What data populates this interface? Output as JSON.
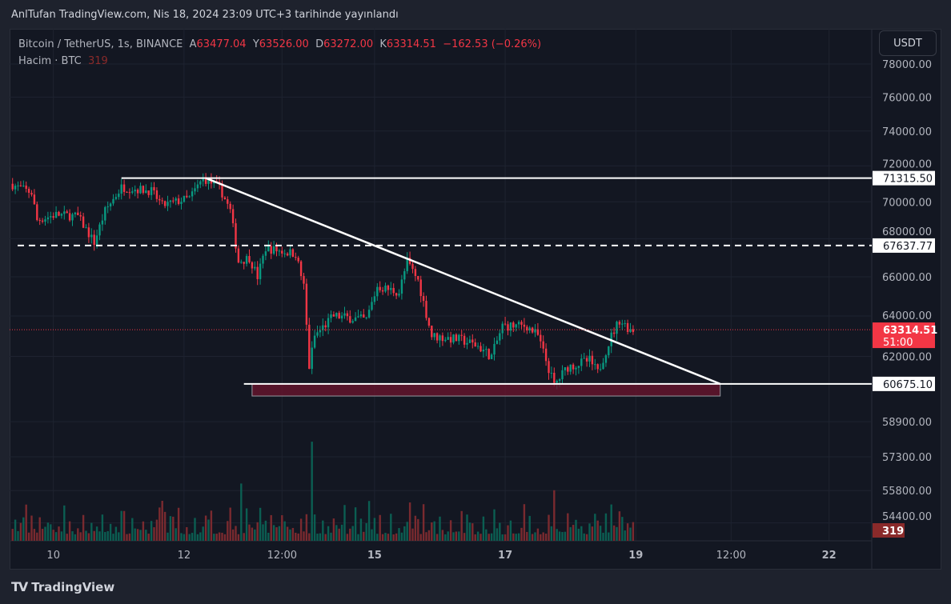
{
  "header": {
    "published": "AnlTufan TradingView.com, Nis 18, 2024 23:09 UTC+3 tarihinde yayınlandı"
  },
  "legend": {
    "symbol": "Bitcoin / TetherUS, 1s, BINANCE",
    "o_label": "A",
    "o": "63477.04",
    "h_label": "Y",
    "h": "63526.00",
    "l_label": "D",
    "l": "63272.00",
    "c_label": "K",
    "c": "63314.51",
    "change": "−162.53 (−0.26%)",
    "volume_label": "Hacim · BTC",
    "volume": "319"
  },
  "currency_button": "USDT",
  "footer": {
    "brand": "TradingView"
  },
  "colors": {
    "up": "#089981",
    "down": "#f23645",
    "bg": "#131722"
  },
  "chart_data": {
    "type": "candlestick",
    "scale": "log",
    "ylim": [
      53800,
      79500
    ],
    "y_ticks": [
      78000,
      76000,
      74000,
      72000,
      70000,
      68000,
      66000,
      64000,
      62000,
      58900,
      57300,
      55800,
      54400
    ],
    "x_ticks": [
      {
        "label": "10",
        "i": 15
      },
      {
        "label": "12",
        "i": 63
      },
      {
        "label": "12:00",
        "i": 99
      },
      {
        "label": "15",
        "i": 133
      },
      {
        "label": "17",
        "i": 181
      },
      {
        "label": "19",
        "i": 229
      },
      {
        "label": "12:00",
        "i": 264
      },
      {
        "label": "22",
        "i": 300
      }
    ],
    "n_candles": 229,
    "price_path": [
      [
        0,
        71000
      ],
      [
        8,
        70500
      ],
      [
        10,
        69000
      ],
      [
        17,
        69300
      ],
      [
        25,
        69200
      ],
      [
        31,
        67800
      ],
      [
        35,
        69500
      ],
      [
        41,
        70800
      ],
      [
        52,
        70600
      ],
      [
        56,
        69800
      ],
      [
        66,
        70200
      ],
      [
        71,
        71300
      ],
      [
        77,
        70800
      ],
      [
        81,
        69500
      ],
      [
        84,
        66800
      ],
      [
        88,
        67000
      ],
      [
        91,
        66000
      ],
      [
        94,
        67500
      ],
      [
        105,
        67200
      ],
      [
        108,
        65500
      ],
      [
        110,
        61500
      ],
      [
        112,
        63000
      ],
      [
        119,
        64000
      ],
      [
        131,
        63800
      ],
      [
        135,
        65500
      ],
      [
        143,
        65200
      ],
      [
        146,
        66800
      ],
      [
        150,
        65800
      ],
      [
        155,
        63000
      ],
      [
        166,
        62800
      ],
      [
        172,
        62500
      ],
      [
        177,
        62000
      ],
      [
        181,
        63500
      ],
      [
        190,
        63500
      ],
      [
        194,
        63000
      ],
      [
        199,
        61000
      ],
      [
        200,
        60600
      ],
      [
        205,
        61500
      ],
      [
        213,
        61800
      ],
      [
        216,
        61200
      ],
      [
        221,
        63000
      ],
      [
        224,
        63800
      ],
      [
        228,
        63314.51
      ]
    ],
    "annotations": {
      "resistance": {
        "price": 71315.5,
        "label": "71315.50"
      },
      "dashed_level": {
        "price": 67637.77,
        "label": "67637.77"
      },
      "support": {
        "price": 60675.1,
        "label": "60675.10"
      },
      "trendline": {
        "from": [
          71,
          71315.5
        ],
        "to": [
          260,
          60675.1
        ]
      },
      "zone": {
        "from_i": 88,
        "to_i": 260,
        "top": 60675.1,
        "bottom": 60100
      },
      "last_price": {
        "label": "63314.51",
        "countdown": "51:00"
      },
      "last_volume": "319"
    }
  }
}
